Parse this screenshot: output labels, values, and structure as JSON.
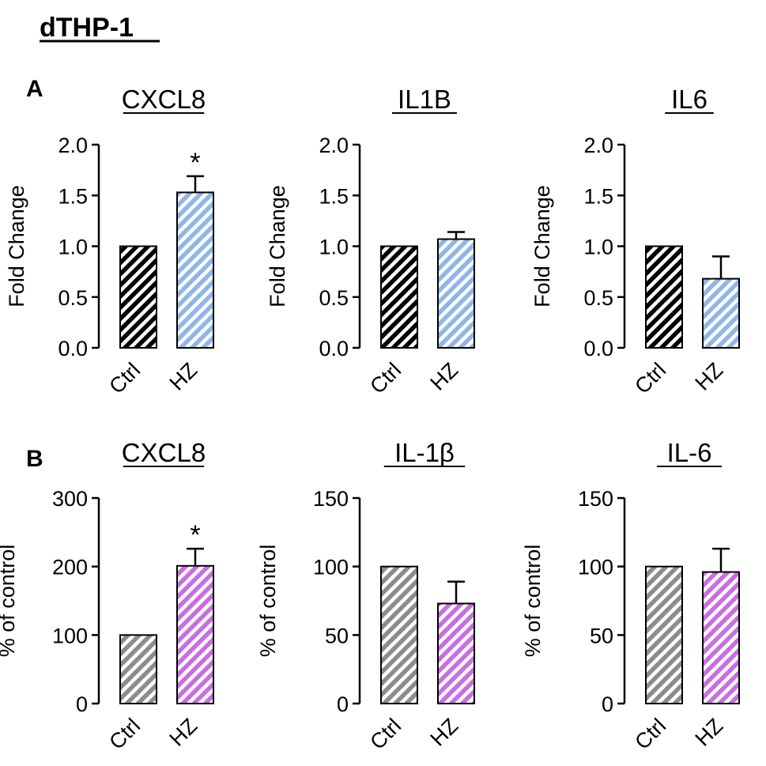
{
  "figure_title": "dTHP-1",
  "panels": [
    {
      "label": "A",
      "ylabel": "Fold Change"
    },
    {
      "label": "B",
      "ylabel": "% of control"
    }
  ],
  "colors": {
    "ctrl_A": "#000000",
    "hz_A": "#8fb6e6",
    "ctrl_B": "#8c8c8c",
    "hz_B": "#c86ee0",
    "stroke": "#000000"
  },
  "chart_data": [
    {
      "type": "bar",
      "panel": "A",
      "title": "CXCL8",
      "ylabel": "Fold Change",
      "xlabel": "",
      "categories": [
        "Ctrl",
        "HZ"
      ],
      "values": [
        1.0,
        1.53
      ],
      "errors": [
        0,
        0.16
      ],
      "ylim": [
        0,
        2.0
      ],
      "yticks": [
        "0.0",
        "0.5",
        "1.0",
        "1.5",
        "2.0"
      ],
      "significance": [
        "",
        "*"
      ]
    },
    {
      "type": "bar",
      "panel": "A",
      "title": "IL1B",
      "ylabel": "Fold Change",
      "xlabel": "",
      "categories": [
        "Ctrl",
        "HZ"
      ],
      "values": [
        1.0,
        1.07
      ],
      "errors": [
        0,
        0.07
      ],
      "ylim": [
        0,
        2.0
      ],
      "yticks": [
        "0.0",
        "0.5",
        "1.0",
        "1.5",
        "2.0"
      ],
      "significance": [
        "",
        ""
      ]
    },
    {
      "type": "bar",
      "panel": "A",
      "title": "IL6",
      "ylabel": "Fold Change",
      "xlabel": "",
      "categories": [
        "Ctrl",
        "HZ"
      ],
      "values": [
        1.0,
        0.68
      ],
      "errors": [
        0,
        0.22
      ],
      "ylim": [
        0,
        2.0
      ],
      "yticks": [
        "0.0",
        "0.5",
        "1.0",
        "1.5",
        "2.0"
      ],
      "significance": [
        "",
        ""
      ]
    },
    {
      "type": "bar",
      "panel": "B",
      "title": "CXCL8",
      "ylabel": "% of control",
      "xlabel": "",
      "categories": [
        "Ctrl",
        "HZ"
      ],
      "values": [
        100,
        201
      ],
      "errors": [
        0,
        25
      ],
      "ylim": [
        0,
        300
      ],
      "yticks": [
        "0",
        "100",
        "200",
        "300"
      ],
      "significance": [
        "",
        "*"
      ]
    },
    {
      "type": "bar",
      "panel": "B",
      "title": "IL-1β",
      "ylabel": "% of control",
      "xlabel": "",
      "categories": [
        "Ctrl",
        "HZ"
      ],
      "values": [
        100,
        73
      ],
      "errors": [
        0,
        16
      ],
      "ylim": [
        0,
        150
      ],
      "yticks": [
        "0",
        "50",
        "100",
        "150"
      ],
      "significance": [
        "",
        ""
      ]
    },
    {
      "type": "bar",
      "panel": "B",
      "title": "IL-6",
      "ylabel": "% of control",
      "xlabel": "",
      "categories": [
        "Ctrl",
        "HZ"
      ],
      "values": [
        100,
        96
      ],
      "errors": [
        0,
        17
      ],
      "ylim": [
        0,
        150
      ],
      "yticks": [
        "0",
        "50",
        "100",
        "150"
      ],
      "significance": [
        "",
        ""
      ]
    }
  ]
}
